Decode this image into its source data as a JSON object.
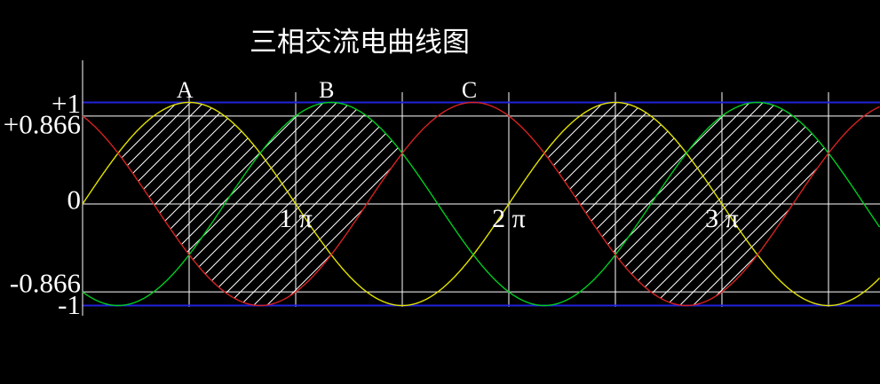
{
  "title": "三相交流电曲线图",
  "chart_data": {
    "type": "line",
    "title": "三相交流电曲线图",
    "x_unit": "radians",
    "x_max_pi": 3.742,
    "ylim": [
      -1,
      1
    ],
    "amplitude": 1,
    "grid": true,
    "series": [
      {
        "name": "A",
        "label": "A",
        "formula": "sin(x)",
        "phase_pi": 0,
        "color": "#e2e200",
        "label_theta_pi": 0.48
      },
      {
        "name": "B",
        "label": "B",
        "formula": "sin(x - 2π/3)",
        "phase_pi": -0.6667,
        "color": "#00cc22",
        "label_theta_pi": 1.145
      },
      {
        "name": "C",
        "label": "C",
        "formula": "sin(x + 2π/3)",
        "phase_pi": 0.6667,
        "color": "#d42222",
        "label_theta_pi": 1.815
      }
    ],
    "y_axis_ticks": [
      {
        "value": 1,
        "label": "+1"
      },
      {
        "value": 0.866,
        "label": "+0.866"
      },
      {
        "value": 0,
        "label": "0"
      },
      {
        "value": -0.866,
        "label": "-0.866"
      },
      {
        "value": -1,
        "label": "-1"
      }
    ],
    "x_axis_ticks": [
      {
        "value_pi": 1,
        "label": "1 π"
      },
      {
        "value_pi": 2,
        "label": "2 π"
      },
      {
        "value_pi": 3,
        "label": "3 π"
      }
    ],
    "x_gridlines_pi": [
      0.5,
      1,
      1.5,
      2,
      2.5,
      3,
      3.5
    ],
    "y_gridlines": [
      0.866,
      0,
      -0.866
    ],
    "y_limit_lines": [
      1,
      -1
    ],
    "hatch_regions": [
      {
        "start_pi": 0.1667,
        "end_pi": 1.5,
        "upper_series": [
          "A",
          "B"
        ],
        "lower_series": "C"
      },
      {
        "start_pi": 2.1667,
        "end_pi": 3.5,
        "upper_series": [
          "A",
          "B"
        ],
        "lower_series": "C"
      }
    ],
    "colors": {
      "background": "#000000",
      "grid": "#ffffff",
      "axis": "#ffffff",
      "limit_line": "#2222dd",
      "hatch": "#ffffff",
      "text": "#ffffff"
    }
  }
}
